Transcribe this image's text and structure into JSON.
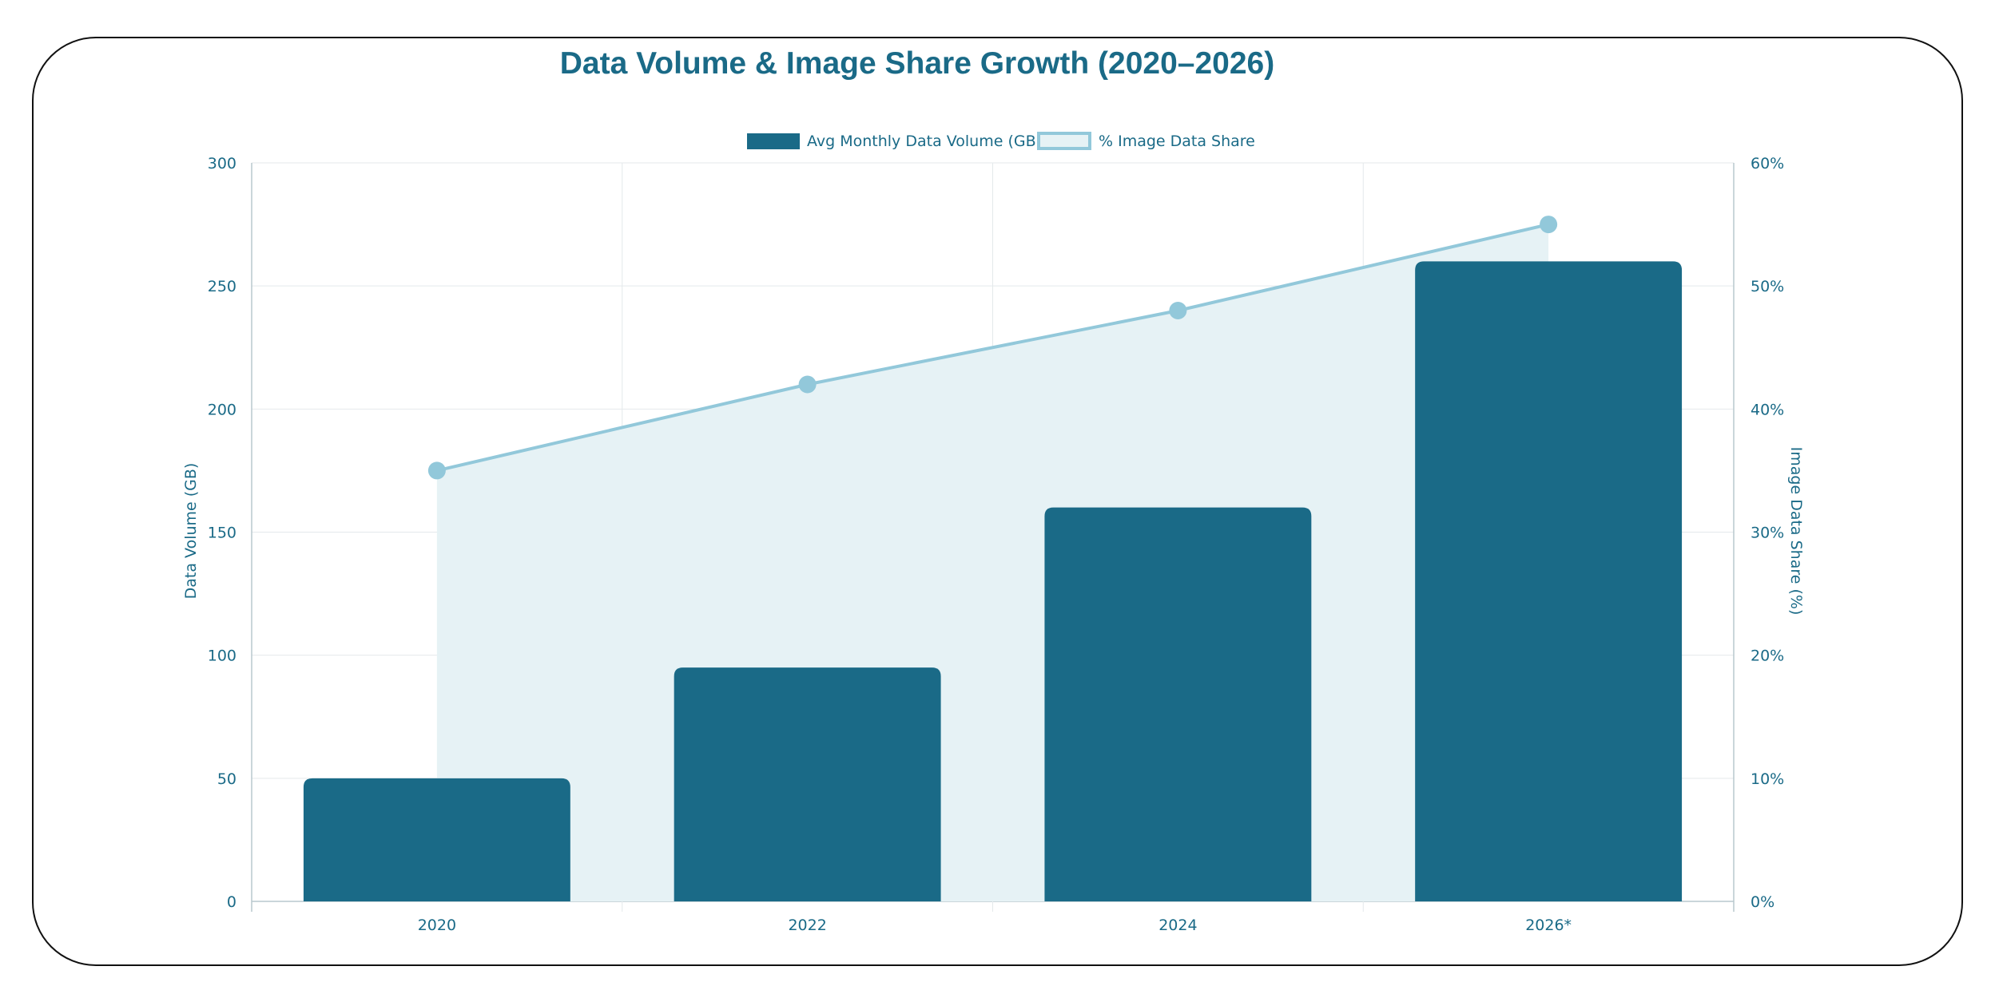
{
  "chart_data": {
    "type": "bar",
    "title": "Data Volume & Image Share Growth (2020–2026)",
    "categories": [
      "2020",
      "2022",
      "2024",
      "2026*"
    ],
    "series": [
      {
        "name": "Avg Monthly Data Volume (GB)",
        "type": "bar",
        "axis": "left",
        "values": [
          50,
          95,
          160,
          260
        ],
        "color": "#1a6a87"
      },
      {
        "name": "% Image Data Share",
        "type": "area",
        "axis": "right",
        "values": [
          35,
          42,
          48,
          55
        ],
        "color": "#92c8da",
        "fill": "#e6f2f5"
      }
    ],
    "ylabel": "Data Volume (GB)",
    "ylabel_right": "Image Data Share (%)",
    "ylim": [
      0,
      300
    ],
    "ylim_right": [
      0,
      60
    ],
    "yticks": [
      "0",
      "50",
      "100",
      "150",
      "200",
      "250",
      "300"
    ],
    "yticks_right": [
      "0%",
      "10%",
      "20%",
      "30%",
      "40%",
      "50%",
      "60%"
    ],
    "grid": true,
    "legend": "top-center"
  }
}
